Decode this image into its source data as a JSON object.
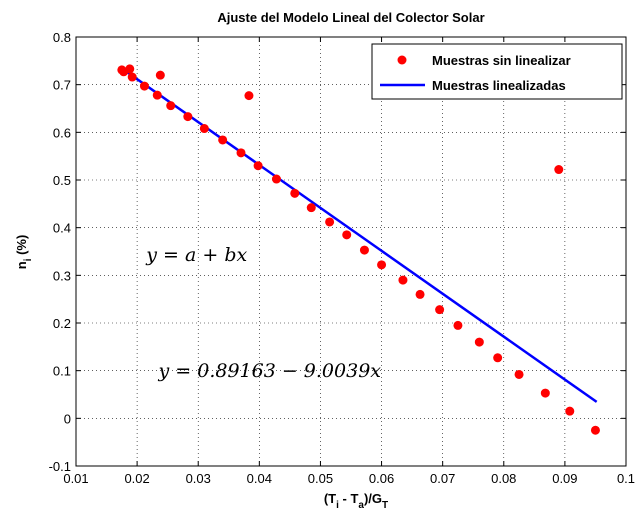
{
  "chart_data": {
    "type": "scatter",
    "title": "Ajuste del Modelo Lineal del Colector Solar",
    "xlabel": {
      "main": "(T",
      "sub1": "i",
      "mid": " - T",
      "sub2": "a",
      "after": ")/G",
      "sub3": "T"
    },
    "ylabel": {
      "main": "n",
      "sub": "i",
      "after": " (%)"
    },
    "xlim": [
      0.01,
      0.1
    ],
    "ylim": [
      -0.1,
      0.8
    ],
    "xticks": [
      0.01,
      0.02,
      0.03,
      0.04,
      0.05,
      0.06,
      0.07,
      0.08,
      0.09,
      0.1
    ],
    "xtick_labels": [
      "0.01",
      "0.02",
      "0.03",
      "0.04",
      "0.05",
      "0.06",
      "0.07",
      "0.08",
      "0.09",
      "0.1"
    ],
    "yticks": [
      -0.1,
      0,
      0.1,
      0.2,
      0.3,
      0.4,
      0.5,
      0.6,
      0.7,
      0.8
    ],
    "ytick_labels": [
      "-0.1",
      "0",
      "0.1",
      "0.2",
      "0.3",
      "0.4",
      "0.5",
      "0.6",
      "0.7",
      "0.8"
    ],
    "grid": true,
    "legend_position": "top-right",
    "series": [
      {
        "name": "Muestras sin linealizar",
        "type": "scatter",
        "color": "#ff0000",
        "points": [
          [
            0.0175,
            0.731
          ],
          [
            0.0178,
            0.727
          ],
          [
            0.0188,
            0.733
          ],
          [
            0.0192,
            0.716
          ],
          [
            0.0212,
            0.697
          ],
          [
            0.0233,
            0.678
          ],
          [
            0.0238,
            0.72
          ],
          [
            0.0255,
            0.656
          ],
          [
            0.0283,
            0.633
          ],
          [
            0.031,
            0.608
          ],
          [
            0.034,
            0.584
          ],
          [
            0.037,
            0.557
          ],
          [
            0.0383,
            0.677
          ],
          [
            0.0398,
            0.53
          ],
          [
            0.0428,
            0.502
          ],
          [
            0.0458,
            0.472
          ],
          [
            0.0485,
            0.442
          ],
          [
            0.0515,
            0.412
          ],
          [
            0.0543,
            0.385
          ],
          [
            0.0572,
            0.353
          ],
          [
            0.06,
            0.322
          ],
          [
            0.0635,
            0.29
          ],
          [
            0.0663,
            0.26
          ],
          [
            0.0695,
            0.228
          ],
          [
            0.0725,
            0.195
          ],
          [
            0.076,
            0.16
          ],
          [
            0.079,
            0.127
          ],
          [
            0.0825,
            0.092
          ],
          [
            0.0868,
            0.053
          ],
          [
            0.089,
            0.522
          ],
          [
            0.0908,
            0.015
          ],
          [
            0.095,
            -0.025
          ]
        ]
      },
      {
        "name": "Muestras linealizadas",
        "type": "line",
        "color": "#0000ff",
        "intercept": 0.89163,
        "slope": -9.0039,
        "x_range": [
          0.0175,
          0.0952
        ]
      }
    ],
    "annotations": [
      {
        "text": "y = a + bx",
        "x": 0.0215,
        "y": 0.33
      },
      {
        "text": "y = 0.89163 − 9.0039x",
        "x": 0.0235,
        "y": 0.087
      }
    ]
  }
}
